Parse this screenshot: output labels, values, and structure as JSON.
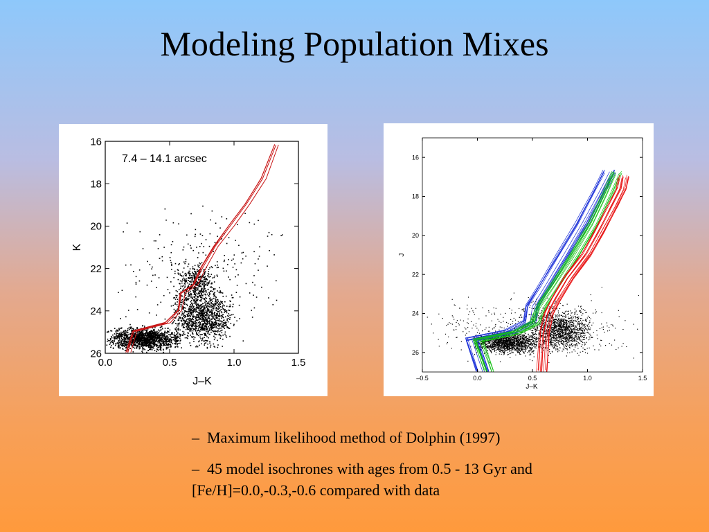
{
  "slide": {
    "title": "Modeling Population Mixes",
    "bullets": [
      {
        "dash": "–",
        "text": "Maximum likelihood method of Dolphin (1997)"
      },
      {
        "dash": "–",
        "text": "45 model isochrones with ages from 0.5 - 13 Gyr and [Fe/H]=0.0,-0.3,-0.6 compared with data"
      }
    ]
  },
  "chart_data": [
    {
      "type": "scatter",
      "title": "",
      "annotation": "7.4 – 14.1 arcsec",
      "xlabel": "J–K",
      "ylabel": "K",
      "xlim": [
        0.0,
        1.5
      ],
      "ylim": [
        26,
        16
      ],
      "x_ticks": [
        "0.0",
        "0.5",
        "1.0",
        "1.5"
      ],
      "y_ticks": [
        "16",
        "18",
        "20",
        "22",
        "24",
        "26"
      ],
      "y_inverted": true,
      "grid": false,
      "colors": {
        "data": "#000000",
        "isochrones": "#c81414"
      },
      "series": [
        {
          "kind": "points",
          "color": "#000000",
          "density_regions": [
            {
              "x": [
                0.0,
                0.6
              ],
              "y": [
                24.6,
                26.0
              ],
              "weight": 0.45
            },
            {
              "x": [
                0.5,
                1.0
              ],
              "y": [
                22.5,
                26.0
              ],
              "weight": 0.35
            },
            {
              "x": [
                0.55,
                0.85
              ],
              "y": [
                21.5,
                23.8
              ],
              "weight": 0.12
            },
            {
              "x": [
                0.0,
                1.4
              ],
              "y": [
                18.0,
                26.0
              ],
              "weight": 0.08
            }
          ]
        },
        {
          "kind": "isochrones",
          "color": "#c81414",
          "count": 4,
          "track": [
            {
              "x": 0.2,
              "y": 26.0
            },
            {
              "x": 0.25,
              "y": 25.0
            },
            {
              "x": 0.5,
              "y": 24.6
            },
            {
              "x": 0.6,
              "y": 24.0
            },
            {
              "x": 0.62,
              "y": 23.2
            },
            {
              "x": 0.72,
              "y": 22.8
            },
            {
              "x": 0.78,
              "y": 22.0
            },
            {
              "x": 0.88,
              "y": 21.0
            },
            {
              "x": 1.0,
              "y": 20.0
            },
            {
              "x": 1.12,
              "y": 19.0
            },
            {
              "x": 1.25,
              "y": 17.8
            },
            {
              "x": 1.35,
              "y": 16.2
            }
          ]
        }
      ]
    },
    {
      "type": "scatter",
      "title": "",
      "xlabel": "J–K",
      "ylabel": "J",
      "xlim": [
        -0.5,
        1.5
      ],
      "ylim": [
        27,
        15
      ],
      "x_ticks": [
        "–0.5",
        "0.0",
        "0.5",
        "1.0",
        "1.5"
      ],
      "y_ticks": [
        "16",
        "18",
        "20",
        "22",
        "24",
        "26"
      ],
      "y_inverted": true,
      "grid": false,
      "colors": {
        "data": "#000000",
        "metal_poor": "#1a2fd8",
        "intermediate": "#10c010",
        "metal_rich": "#e81010"
      },
      "series": [
        {
          "kind": "points",
          "color": "#000000",
          "density_regions": [
            {
              "x": [
                -0.05,
                0.6
              ],
              "y": [
                24.8,
                26.2
              ],
              "weight": 0.45
            },
            {
              "x": [
                0.45,
                1.05
              ],
              "y": [
                23.5,
                26.2
              ],
              "weight": 0.4
            },
            {
              "x": [
                -0.5,
                1.5
              ],
              "y": [
                22.5,
                27.0
              ],
              "weight": 0.15
            }
          ]
        },
        {
          "kind": "isochrones",
          "color": "#1a2fd8",
          "count": 14,
          "track": [
            {
              "x": 0.05,
              "y": 27.0
            },
            {
              "x": -0.05,
              "y": 25.3
            },
            {
              "x": 0.3,
              "y": 24.9
            },
            {
              "x": 0.48,
              "y": 24.4
            },
            {
              "x": 0.5,
              "y": 23.6
            },
            {
              "x": 0.62,
              "y": 22.5
            },
            {
              "x": 0.78,
              "y": 21.0
            },
            {
              "x": 0.95,
              "y": 19.4
            },
            {
              "x": 1.1,
              "y": 17.8
            },
            {
              "x": 1.2,
              "y": 16.7
            }
          ]
        },
        {
          "kind": "isochrones",
          "color": "#10c010",
          "count": 12,
          "track": [
            {
              "x": 0.1,
              "y": 27.0
            },
            {
              "x": 0.0,
              "y": 25.4
            },
            {
              "x": 0.35,
              "y": 25.0
            },
            {
              "x": 0.52,
              "y": 24.5
            },
            {
              "x": 0.58,
              "y": 23.6
            },
            {
              "x": 0.7,
              "y": 22.6
            },
            {
              "x": 0.88,
              "y": 21.0
            },
            {
              "x": 1.05,
              "y": 19.4
            },
            {
              "x": 1.18,
              "y": 17.9
            },
            {
              "x": 1.26,
              "y": 16.8
            }
          ]
        },
        {
          "kind": "isochrones",
          "color": "#e81010",
          "count": 14,
          "track": [
            {
              "x": 0.58,
              "y": 27.0
            },
            {
              "x": 0.6,
              "y": 25.0
            },
            {
              "x": 0.64,
              "y": 24.0
            },
            {
              "x": 0.7,
              "y": 23.3
            },
            {
              "x": 0.82,
              "y": 22.2
            },
            {
              "x": 0.98,
              "y": 21.0
            },
            {
              "x": 1.1,
              "y": 19.8
            },
            {
              "x": 1.22,
              "y": 18.5
            },
            {
              "x": 1.3,
              "y": 17.6
            },
            {
              "x": 1.32,
              "y": 17.0
            }
          ]
        }
      ]
    }
  ]
}
